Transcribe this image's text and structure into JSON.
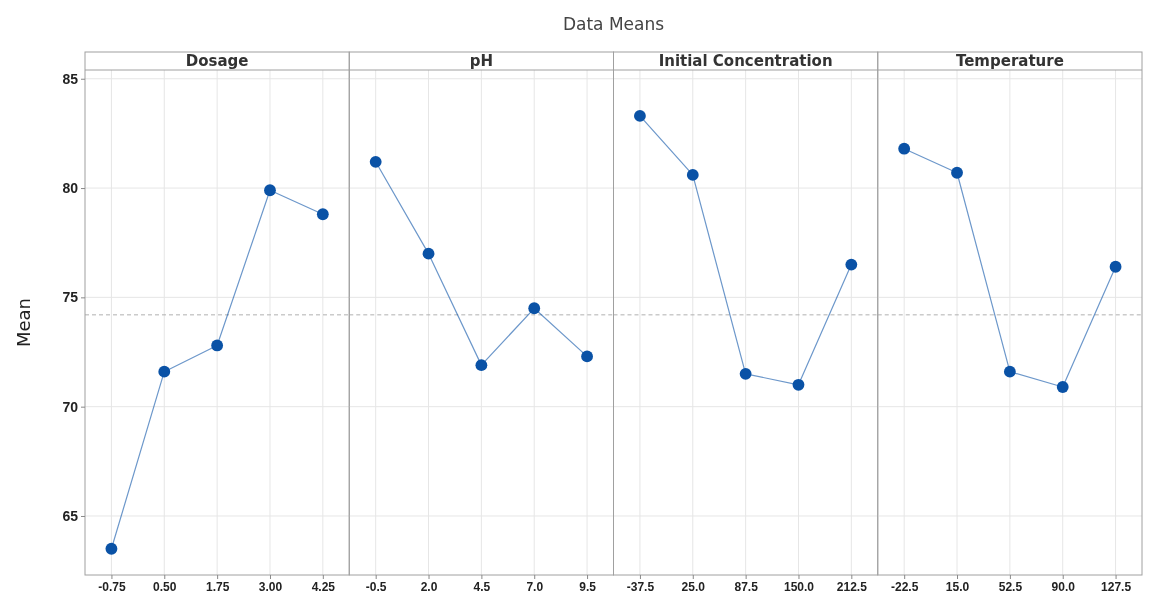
{
  "chart_data": [
    {
      "type": "line",
      "title": "Dosage",
      "ylabel": "Mean",
      "annotations": [
        "Data Means"
      ],
      "categories": [
        "-0.75",
        "0.50",
        "1.75",
        "3.00",
        "4.25"
      ],
      "series": [
        {
          "color": "#0a52a6",
          "values": [
            63.5,
            71.6,
            72.8,
            79.9,
            78.8
          ]
        }
      ],
      "ylim": [
        62.3,
        85.4
      ],
      "yticks": [
        65,
        70,
        75,
        80,
        85
      ],
      "grid": true,
      "marker": "circle",
      "ref_lines": [
        {
          "axis": "y",
          "value": 74.2,
          "line_style": "dashed",
          "color": "#b0b0b0"
        }
      ]
    },
    {
      "type": "line",
      "title": "pH",
      "categories": [
        "-0.5",
        "2.0",
        "4.5",
        "7.0",
        "9.5"
      ],
      "series": [
        {
          "color": "#0a52a6",
          "values": [
            81.2,
            77.0,
            71.9,
            74.5,
            72.3
          ]
        }
      ],
      "ylim": [
        62.3,
        85.4
      ],
      "yticks": [
        65,
        70,
        75,
        80,
        85
      ],
      "tick_labels": "x",
      "grid": true,
      "marker": "circle",
      "ref_lines": [
        {
          "axis": "y",
          "value": 74.2,
          "line_style": "dashed",
          "color": "#b0b0b0"
        }
      ]
    },
    {
      "type": "line",
      "title": "Initial Concentration",
      "categories": [
        "-37.5",
        "25.0",
        "87.5",
        "150.0",
        "212.5"
      ],
      "series": [
        {
          "color": "#0a52a6",
          "values": [
            83.3,
            80.6,
            71.5,
            71.0,
            76.5
          ]
        }
      ],
      "ylim": [
        62.3,
        85.4
      ],
      "yticks": [
        65,
        70,
        75,
        80,
        85
      ],
      "tick_labels": "x",
      "grid": true,
      "marker": "circle",
      "ref_lines": [
        {
          "axis": "y",
          "value": 74.2,
          "line_style": "dashed",
          "color": "#b0b0b0"
        }
      ]
    },
    {
      "type": "line",
      "title": "Temperature",
      "categories": [
        "-22.5",
        "15.0",
        "52.5",
        "90.0",
        "127.5"
      ],
      "series": [
        {
          "color": "#0a52a6",
          "values": [
            81.8,
            80.7,
            71.6,
            70.9,
            76.4
          ]
        }
      ],
      "ylim": [
        62.3,
        85.4
      ],
      "yticks": [
        65,
        70,
        75,
        80,
        85
      ],
      "tick_labels": "x",
      "grid": true,
      "marker": "circle",
      "ref_lines": [
        {
          "axis": "y",
          "value": 74.2,
          "line_style": "dashed",
          "color": "#b0b0b0"
        }
      ]
    }
  ]
}
